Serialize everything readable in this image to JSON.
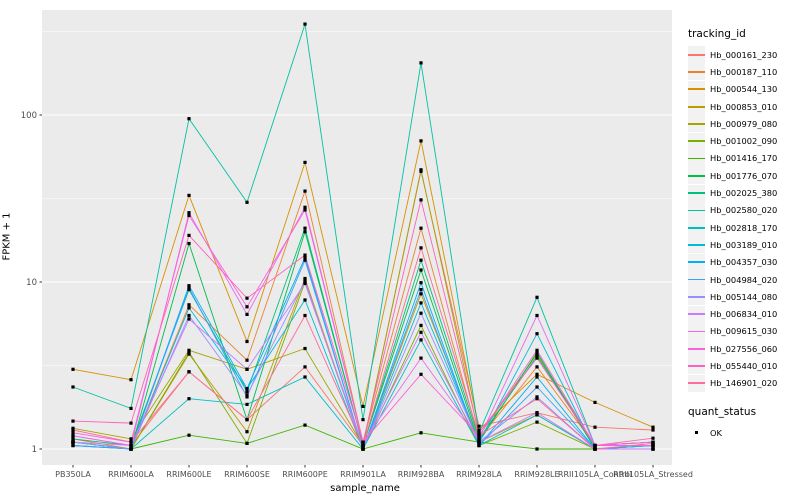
{
  "figure": {
    "background": "#FFFFFF",
    "panel_background": "#EBEBEB",
    "gridline_color": "#FFFFFF",
    "marker_color": "#000000",
    "axis_text_color": "#4D4D4D",
    "axis_tick_color": "#333333"
  },
  "chart_data": {
    "type": "line",
    "title": "",
    "xlabel": "sample_name",
    "ylabel": "FPKM + 1",
    "y_scale": "log10",
    "ylim": [
      0.8,
      430
    ],
    "grid": true,
    "legend_position": "right",
    "y_ticks": [
      {
        "label": "1",
        "value": 1
      },
      {
        "label": "10",
        "value": 10
      },
      {
        "label": "100",
        "value": 100
      }
    ],
    "y_minor_values": [
      3.162,
      31.62,
      316.2
    ],
    "categories": [
      "PB350LA",
      "RRIM600LA",
      "RRIM600LE",
      "RRIM600SE",
      "RRIM600PE",
      "RRIM901LA",
      "RRIM928BA",
      "RRIM928LA",
      "RRIM928LE",
      "RRII105LA_Control",
      "RRII105LA_Stressed"
    ],
    "series": [
      {
        "name": "Hb_000161_230",
        "color": "#F8766D",
        "values": [
          1.2,
          1.05,
          2.9,
          1.5,
          3.1,
          1.05,
          46.0,
          1.37,
          1.65,
          1.35,
          1.3
        ]
      },
      {
        "name": "Hb_000187_110",
        "color": "#EA8331",
        "values": [
          1.15,
          1.0,
          7.3,
          3.4,
          35.0,
          1.1,
          21.0,
          1.15,
          3.1,
          1.05,
          1.1
        ]
      },
      {
        "name": "Hb_000544_130",
        "color": "#D89000",
        "values": [
          3.0,
          2.6,
          33.0,
          4.4,
          52.0,
          1.8,
          70.0,
          1.3,
          2.8,
          1.9,
          1.35
        ]
      },
      {
        "name": "Hb_000853_010",
        "color": "#C09B00",
        "values": [
          1.1,
          1.0,
          3.7,
          1.27,
          10.5,
          1.0,
          8.5,
          1.1,
          1.6,
          1.0,
          1.05
        ]
      },
      {
        "name": "Hb_000979_080",
        "color": "#A3A500",
        "values": [
          1.33,
          1.15,
          3.9,
          3.0,
          4.0,
          1.05,
          47.0,
          1.2,
          3.7,
          1.05,
          1.1
        ]
      },
      {
        "name": "Hb_001002_090",
        "color": "#7CAE00",
        "values": [
          1.05,
          1.0,
          3.8,
          1.08,
          10.0,
          1.0,
          5.5,
          1.05,
          1.45,
          1.0,
          1.0
        ]
      },
      {
        "name": "Hb_001416_170",
        "color": "#39B600",
        "values": [
          1.1,
          1.0,
          1.21,
          1.08,
          1.39,
          1.0,
          1.25,
          1.1,
          1.0,
          1.0,
          1.0
        ]
      },
      {
        "name": "Hb_001776_070",
        "color": "#00BB4E",
        "values": [
          1.1,
          1.0,
          17.0,
          1.5,
          20.0,
          1.05,
          11.8,
          1.1,
          3.8,
          1.0,
          1.05
        ]
      },
      {
        "name": "Hb_002025_380",
        "color": "#00BF7D",
        "values": [
          1.15,
          1.05,
          9.0,
          2.2,
          21.0,
          1.05,
          13.5,
          1.15,
          3.6,
          1.05,
          1.05
        ]
      },
      {
        "name": "Hb_002580_020",
        "color": "#00C1A3",
        "values": [
          2.35,
          1.75,
          95.0,
          30.0,
          350,
          1.5,
          205,
          1.25,
          8.1,
          1.05,
          1.1
        ]
      },
      {
        "name": "Hb_002818_170",
        "color": "#00BFC4",
        "values": [
          1.1,
          1.0,
          2.0,
          1.85,
          2.7,
          1.0,
          4.5,
          1.05,
          1.6,
          1.0,
          1.0
        ]
      },
      {
        "name": "Hb_003189_010",
        "color": "#00BAE0",
        "values": [
          1.1,
          1.0,
          7.0,
          2.3,
          7.8,
          1.0,
          7.5,
          1.1,
          4.9,
          1.0,
          1.05
        ]
      },
      {
        "name": "Hb_004357_030",
        "color": "#00B0F6",
        "values": [
          1.05,
          1.0,
          9.5,
          2.3,
          14.0,
          1.0,
          9.9,
          1.05,
          2.7,
          1.0,
          1.0
        ]
      },
      {
        "name": "Hb_004984_020",
        "color": "#35A2FF",
        "values": [
          1.05,
          1.0,
          9.2,
          2.05,
          13.5,
          1.0,
          9.0,
          1.05,
          2.35,
          1.0,
          1.05
        ]
      },
      {
        "name": "Hb_005144_080",
        "color": "#9590FF",
        "values": [
          1.1,
          1.0,
          6.3,
          2.1,
          10.2,
          1.0,
          6.5,
          1.1,
          2.05,
          1.0,
          1.0
        ]
      },
      {
        "name": "Hb_006834_010",
        "color": "#C77CFF",
        "values": [
          1.1,
          1.05,
          6.0,
          3.0,
          9.8,
          1.05,
          5.0,
          1.1,
          1.65,
          1.0,
          1.0
        ]
      },
      {
        "name": "Hb_009615_030",
        "color": "#E76BF3",
        "values": [
          1.2,
          1.05,
          26.0,
          6.4,
          28.0,
          1.1,
          3.5,
          1.15,
          6.3,
          1.05,
          1.05
        ]
      },
      {
        "name": "Hb_027556_060",
        "color": "#FA62DB",
        "values": [
          1.25,
          1.1,
          25.0,
          7.1,
          27.0,
          1.1,
          2.8,
          1.2,
          3.9,
          1.05,
          1.1
        ]
      },
      {
        "name": "Hb_055440_010",
        "color": "#FF62BC",
        "values": [
          1.47,
          1.43,
          19.0,
          8.0,
          14.5,
          1.1,
          31.0,
          1.25,
          3.5,
          1.05,
          1.16
        ]
      },
      {
        "name": "Hb_146901_020",
        "color": "#FF6A98",
        "values": [
          1.3,
          1.1,
          2.9,
          1.5,
          6.3,
          1.05,
          16.0,
          1.2,
          2.0,
          1.0,
          1.08
        ]
      }
    ],
    "legend": {
      "color_title": "tracking_id",
      "shape_title": "quant_status",
      "shape_items": [
        {
          "label": "OK"
        }
      ]
    }
  }
}
